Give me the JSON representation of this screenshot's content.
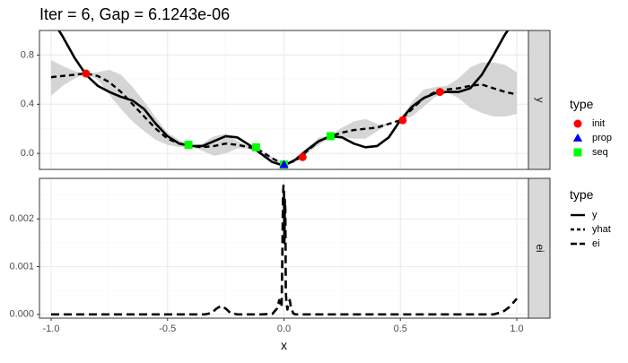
{
  "title": "Iter = 6, Gap = 6.1243e-06",
  "chart_data": [
    {
      "type": "line",
      "panel": "y",
      "strip_label": "y",
      "xlim": [
        -1.05,
        1.05
      ],
      "ylim": [
        -0.13,
        1.0
      ],
      "x_ticks": [
        -1.0,
        -0.5,
        0.0,
        0.5,
        1.0
      ],
      "y_ticks": [
        0.0,
        0.4,
        0.8
      ],
      "y_tick_labels": [
        "0.0",
        "0.4",
        "0.8"
      ],
      "grid": true,
      "series": [
        {
          "name": "y",
          "style": "solid",
          "x": [
            -1.0,
            -0.95,
            -0.9,
            -0.85,
            -0.8,
            -0.75,
            -0.7,
            -0.65,
            -0.6,
            -0.55,
            -0.5,
            -0.45,
            -0.4,
            -0.35,
            -0.3,
            -0.25,
            -0.2,
            -0.15,
            -0.1,
            -0.05,
            0.0,
            0.05,
            0.1,
            0.15,
            0.2,
            0.25,
            0.3,
            0.35,
            0.4,
            0.45,
            0.5,
            0.55,
            0.6,
            0.65,
            0.7,
            0.75,
            0.8,
            0.85,
            0.9,
            0.95,
            1.0
          ],
          "values": [
            1.1,
            0.95,
            0.78,
            0.64,
            0.55,
            0.5,
            0.46,
            0.43,
            0.36,
            0.24,
            0.14,
            0.08,
            0.06,
            0.06,
            0.1,
            0.14,
            0.13,
            0.07,
            0.0,
            -0.07,
            -0.1,
            -0.05,
            0.03,
            0.1,
            0.14,
            0.13,
            0.08,
            0.05,
            0.06,
            0.13,
            0.27,
            0.38,
            0.45,
            0.49,
            0.5,
            0.5,
            0.53,
            0.64,
            0.8,
            0.97,
            1.1
          ]
        },
        {
          "name": "yhat",
          "style": "dashed",
          "x": [
            -1.0,
            -0.95,
            -0.9,
            -0.85,
            -0.8,
            -0.75,
            -0.7,
            -0.65,
            -0.6,
            -0.55,
            -0.5,
            -0.45,
            -0.4,
            -0.35,
            -0.3,
            -0.25,
            -0.2,
            -0.15,
            -0.1,
            -0.05,
            0.0,
            0.05,
            0.1,
            0.15,
            0.2,
            0.25,
            0.3,
            0.35,
            0.4,
            0.45,
            0.5,
            0.55,
            0.6,
            0.65,
            0.7,
            0.75,
            0.8,
            0.85,
            0.9,
            0.95,
            1.0
          ],
          "values": [
            0.62,
            0.63,
            0.64,
            0.65,
            0.63,
            0.58,
            0.5,
            0.4,
            0.3,
            0.2,
            0.12,
            0.08,
            0.06,
            0.05,
            0.06,
            0.08,
            0.07,
            0.05,
            0.02,
            -0.04,
            -0.09,
            -0.06,
            0.02,
            0.1,
            0.14,
            0.17,
            0.19,
            0.2,
            0.21,
            0.24,
            0.27,
            0.36,
            0.45,
            0.5,
            0.52,
            0.53,
            0.55,
            0.56,
            0.53,
            0.5,
            0.48
          ]
        }
      ],
      "band": {
        "x": [
          -1.0,
          -0.95,
          -0.9,
          -0.85,
          -0.8,
          -0.75,
          -0.7,
          -0.65,
          -0.6,
          -0.55,
          -0.5,
          -0.45,
          -0.4,
          -0.35,
          -0.3,
          -0.25,
          -0.2,
          -0.15,
          -0.1,
          -0.05,
          0.0,
          0.05,
          0.1,
          0.15,
          0.2,
          0.25,
          0.3,
          0.35,
          0.4,
          0.45,
          0.5,
          0.55,
          0.6,
          0.65,
          0.7,
          0.75,
          0.8,
          0.85,
          0.9,
          0.95,
          1.0
        ],
        "lower": [
          0.47,
          0.55,
          0.61,
          0.65,
          0.6,
          0.48,
          0.36,
          0.26,
          0.18,
          0.11,
          0.07,
          0.05,
          0.06,
          0.02,
          -0.02,
          0.0,
          0.04,
          0.04,
          0.02,
          -0.05,
          -0.1,
          -0.07,
          0.0,
          0.07,
          0.13,
          0.13,
          0.12,
          0.12,
          0.18,
          0.24,
          0.27,
          0.3,
          0.38,
          0.46,
          0.5,
          0.45,
          0.37,
          0.33,
          0.3,
          0.3,
          0.32
        ],
        "upper": [
          0.76,
          0.71,
          0.67,
          0.65,
          0.66,
          0.68,
          0.64,
          0.54,
          0.42,
          0.29,
          0.17,
          0.11,
          0.06,
          0.08,
          0.14,
          0.16,
          0.1,
          0.06,
          0.02,
          -0.03,
          -0.08,
          -0.05,
          0.04,
          0.13,
          0.15,
          0.21,
          0.26,
          0.28,
          0.24,
          0.24,
          0.27,
          0.42,
          0.52,
          0.54,
          0.55,
          0.61,
          0.7,
          0.74,
          0.74,
          0.72,
          0.66
        ]
      },
      "points": [
        {
          "type": "init",
          "x": -0.85,
          "y": 0.65
        },
        {
          "type": "init",
          "x": 0.08,
          "y": -0.03
        },
        {
          "type": "init",
          "x": 0.51,
          "y": 0.27
        },
        {
          "type": "init",
          "x": 0.67,
          "y": 0.5
        },
        {
          "type": "prop",
          "x": 0.0,
          "y": -0.09
        },
        {
          "type": "seq",
          "x": -0.41,
          "y": 0.07
        },
        {
          "type": "seq",
          "x": -0.12,
          "y": 0.05
        },
        {
          "type": "seq",
          "x": 0.0,
          "y": -0.09
        },
        {
          "type": "seq",
          "x": 0.2,
          "y": 0.14
        }
      ]
    },
    {
      "type": "line",
      "panel": "ei",
      "strip_label": "ei",
      "xlabel": "x",
      "xlim": [
        -1.05,
        1.05
      ],
      "ylim": [
        -8e-05,
        0.00285
      ],
      "x_ticks": [
        -1.0,
        -0.5,
        0.0,
        0.5,
        1.0
      ],
      "x_tick_labels": [
        "-1.0",
        "-0.5",
        "0.0",
        "0.5",
        "1.0"
      ],
      "y_ticks": [
        0.0,
        0.001,
        0.002
      ],
      "y_tick_labels": [
        "0.000",
        "0.001",
        "0.002"
      ],
      "grid": true,
      "series": [
        {
          "name": "ei",
          "style": "dashed",
          "x": [
            -1.0,
            -0.5,
            -0.34,
            -0.31,
            -0.29,
            -0.27,
            -0.25,
            -0.23,
            -0.2,
            -0.1,
            -0.05,
            -0.03,
            -0.02,
            -0.015,
            -0.01,
            -0.007,
            -0.004,
            -0.002,
            0.0,
            0.002,
            0.004,
            0.006,
            0.008,
            0.01,
            0.012,
            0.015,
            0.02,
            0.025,
            0.03,
            0.04,
            0.05,
            0.1,
            0.5,
            0.9,
            0.94,
            0.97,
            1.0
          ],
          "values": [
            0.0,
            0.0,
            0.0,
            3e-05,
            0.00012,
            0.00018,
            0.00012,
            3e-05,
            0.0,
            0.0,
            1e-05,
            0.00012,
            0.0003,
            0.00015,
            0.0002,
            0.0012,
            0.0025,
            0.0027,
            0.0026,
            0.0015,
            0.0024,
            0.0022,
            0.0005,
            0.0003,
            0.0002,
            0.0001,
            0.00025,
            0.0003,
            0.00015,
            2e-05,
            0.0,
            0.0,
            0.0,
            0.0,
            5e-05,
            0.00016,
            0.00033
          ]
        }
      ]
    }
  ],
  "legend_points": {
    "title": "type",
    "items": [
      {
        "label": "init",
        "color": "#ff0000",
        "shape": "circle"
      },
      {
        "label": "prop",
        "color": "#0000ff",
        "shape": "triangle"
      },
      {
        "label": "seq",
        "color": "#00ff00",
        "shape": "square"
      }
    ]
  },
  "legend_lines": {
    "title": "type",
    "items": [
      {
        "label": "y",
        "dash": "solid"
      },
      {
        "label": "yhat",
        "dash": "dashed"
      },
      {
        "label": "ei",
        "dash": "longdash"
      }
    ]
  },
  "colors": {
    "line": "#000000",
    "band": "#d3d3d3",
    "strip": "#d9d9d9",
    "grid_major": "#ebebeb",
    "grid_minor": "#f5f5f5",
    "panel_border": "#333333"
  }
}
